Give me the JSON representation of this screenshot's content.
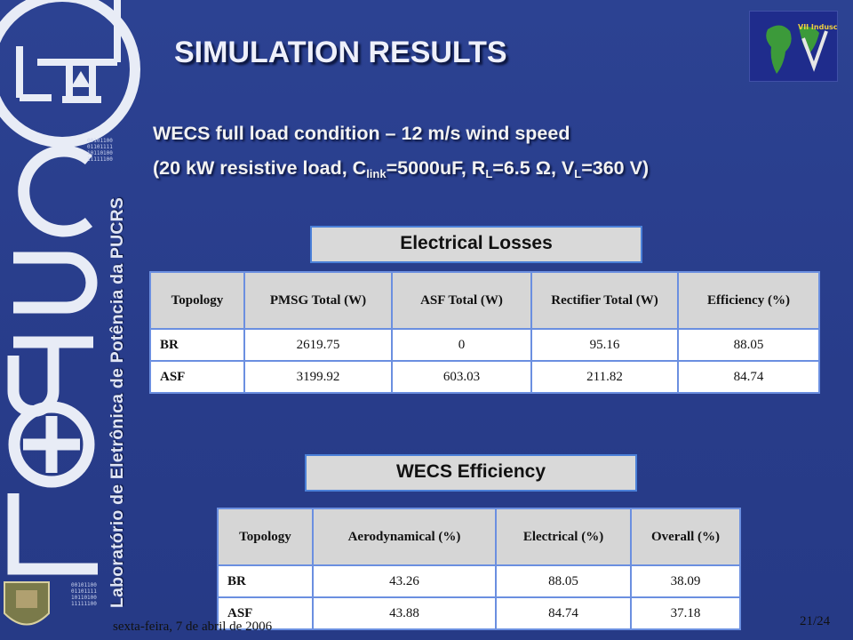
{
  "slide": {
    "title": "SIMULATION RESULTS",
    "subtitle_line1": "WECS full load condition – 12 m/s wind speed",
    "subtitle_line2": {
      "prefix": "(20 kW resistive load, C",
      "sub1": "link",
      "part2": "=5000uF, R",
      "sub2": "L",
      "part3": "=6.5 Ω, V",
      "sub3": "L",
      "suffix": "=360 V)"
    },
    "sidebar_text": "Laboratório de Eletrônica de Potência da PUCRS",
    "logo_letters": "LEPUC",
    "event_logo_text": "VII Induscon",
    "footer_date": "sexta-feira, 7 de abril de 2006",
    "page_number": "21/24"
  },
  "losses": {
    "label": "Electrical Losses",
    "headers": [
      "Topology",
      "PMSG Total (W)",
      "ASF Total (W)",
      "Rectifier Total (W)",
      "Efficiency (%)"
    ],
    "rows": [
      [
        "BR",
        "2619.75",
        "0",
        "95.16",
        "88.05"
      ],
      [
        "ASF",
        "3199.92",
        "603.03",
        "211.82",
        "84.74"
      ]
    ]
  },
  "efficiency": {
    "label": "WECS Efficiency",
    "headers": [
      "Topology",
      "Aerodynamical (%)",
      "Electrical (%)",
      "Overall (%)"
    ],
    "rows": [
      [
        "BR",
        "43.26",
        "88.05",
        "38.09"
      ],
      [
        "ASF",
        "43.88",
        "84.74",
        "37.18"
      ]
    ]
  },
  "colors": {
    "background": "#2a3f8e",
    "table_border": "#6b8fe0",
    "label_border": "#4b80d8"
  }
}
